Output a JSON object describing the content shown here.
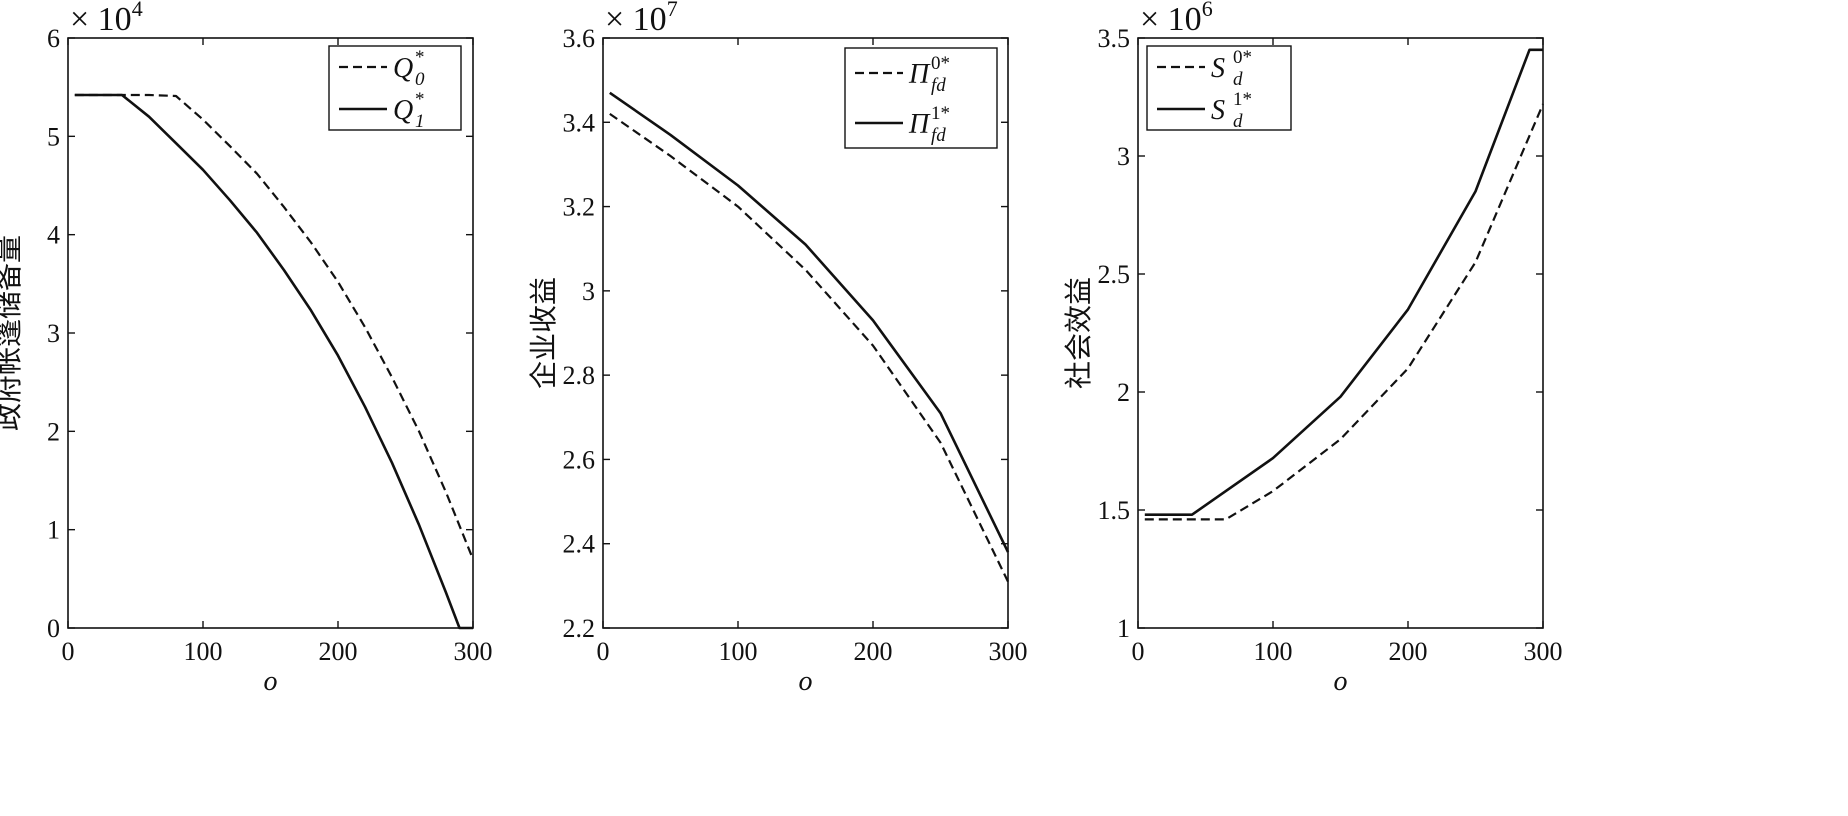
{
  "chart_data": [
    {
      "type": "line",
      "ylabel": "政府帐篷储备量",
      "xlabel": "o",
      "multiplier": {
        "base": "× 10",
        "exp": "4"
      },
      "xlim": [
        0,
        300
      ],
      "ylim": [
        0,
        6
      ],
      "xticks": [
        "0",
        "100",
        "200",
        "300"
      ],
      "yticks": [
        "0",
        "1",
        "2",
        "3",
        "4",
        "5",
        "6"
      ],
      "legend_position": "top-right",
      "series": [
        {
          "name": "Q_0^*",
          "legend": {
            "main": "Q",
            "sup": "*",
            "sub": "0"
          },
          "style": "dashed",
          "x": [
            5,
            20,
            40,
            60,
            80,
            100,
            120,
            140,
            160,
            180,
            200,
            220,
            240,
            260,
            280,
            300
          ],
          "y": [
            5.42,
            5.42,
            5.42,
            5.42,
            5.41,
            5.17,
            4.9,
            4.62,
            4.28,
            3.92,
            3.52,
            3.06,
            2.55,
            2.0,
            1.38,
            0.7
          ]
        },
        {
          "name": "Q_1^*",
          "legend": {
            "main": "Q",
            "sup": "*",
            "sub": "1"
          },
          "style": "solid",
          "x": [
            5,
            20,
            40,
            60,
            80,
            100,
            120,
            140,
            160,
            180,
            200,
            220,
            240,
            260,
            280,
            290,
            300
          ],
          "y": [
            5.42,
            5.42,
            5.42,
            5.2,
            4.93,
            4.66,
            4.35,
            4.02,
            3.64,
            3.23,
            2.77,
            2.25,
            1.68,
            1.05,
            0.36,
            0.0,
            0.0
          ]
        }
      ]
    },
    {
      "type": "line",
      "ylabel": "企业收益",
      "xlabel": "o",
      "multiplier": {
        "base": "× 10",
        "exp": "7"
      },
      "xlim": [
        0,
        300
      ],
      "ylim": [
        2.2,
        3.6
      ],
      "xticks": [
        "0",
        "100",
        "200",
        "300"
      ],
      "yticks": [
        "2.2",
        "2.4",
        "2.6",
        "2.8",
        "3",
        "3.2",
        "3.4",
        "3.6"
      ],
      "legend_position": "top-right",
      "series": [
        {
          "name": "Π_fd^0*",
          "legend": {
            "main": "Π",
            "sup": "0*",
            "sub": "fd"
          },
          "style": "dashed",
          "x": [
            5,
            50,
            100,
            150,
            200,
            250,
            300
          ],
          "y": [
            3.42,
            3.32,
            3.2,
            3.05,
            2.87,
            2.64,
            2.31
          ]
        },
        {
          "name": "Π_fd^1*",
          "legend": {
            "main": "Π",
            "sup": "1*",
            "sub": "fd"
          },
          "style": "solid",
          "x": [
            5,
            50,
            100,
            150,
            200,
            250,
            300
          ],
          "y": [
            3.47,
            3.37,
            3.25,
            3.11,
            2.93,
            2.71,
            2.38
          ]
        }
      ]
    },
    {
      "type": "line",
      "ylabel": "社会效益",
      "xlabel": "o",
      "multiplier": {
        "base": "× 10",
        "exp": "6"
      },
      "xlim": [
        0,
        300
      ],
      "ylim": [
        1,
        3.5
      ],
      "xticks": [
        "0",
        "100",
        "200",
        "300"
      ],
      "yticks": [
        "1",
        "1.5",
        "2",
        "2.5",
        "3",
        "3.5"
      ],
      "legend_position": "top-left",
      "series": [
        {
          "name": "S_d^0*",
          "legend": {
            "main": "S",
            "sup": "0*",
            "sub": "d"
          },
          "style": "dashed",
          "x": [
            5,
            30,
            65,
            100,
            150,
            200,
            250,
            300
          ],
          "y": [
            1.46,
            1.46,
            1.46,
            1.58,
            1.8,
            2.1,
            2.55,
            3.22
          ]
        },
        {
          "name": "S_d^1*",
          "legend": {
            "main": "S",
            "sup": "1*",
            "sub": "d"
          },
          "style": "solid",
          "x": [
            5,
            20,
            40,
            60,
            100,
            150,
            200,
            250,
            290,
            300
          ],
          "y": [
            1.48,
            1.48,
            1.48,
            1.56,
            1.72,
            1.98,
            2.35,
            2.85,
            3.45,
            3.45
          ]
        }
      ]
    }
  ]
}
